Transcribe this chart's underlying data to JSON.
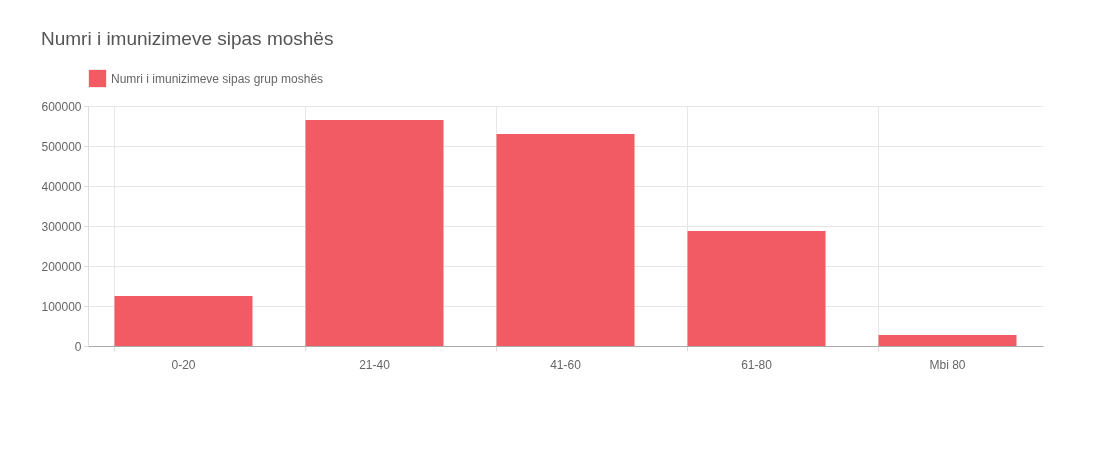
{
  "chart_data": {
    "type": "bar",
    "title": "Numri i imunizimeve sipas moshës",
    "categories": [
      "0-20",
      "21-40",
      "41-60",
      "61-80",
      "Mbi 80"
    ],
    "series": [
      {
        "name": "Numri i imunizimeve sipas grup moshës",
        "color": "#f25a64",
        "values": [
          125000,
          565000,
          530000,
          287500,
          27500
        ]
      }
    ],
    "ylim": [
      0,
      600000
    ],
    "yticks": [
      0,
      100000,
      200000,
      300000,
      400000,
      500000,
      600000
    ],
    "grid": true,
    "legend": "top"
  }
}
